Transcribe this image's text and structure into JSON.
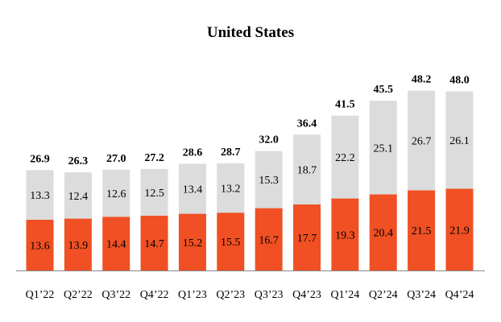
{
  "chart_data": {
    "type": "bar",
    "stacked": true,
    "title": "United States",
    "xlabel": "",
    "ylabel": "",
    "ylim": [
      0,
      52
    ],
    "grid": false,
    "legend": "none",
    "categories": [
      "Q1’22",
      "Q2’22",
      "Q3’22",
      "Q4’22",
      "Q1’23",
      "Q2’23",
      "Q3’23",
      "Q4’23",
      "Q1’24",
      "Q2’24",
      "Q3’24",
      "Q4’24"
    ],
    "series": [
      {
        "values": [
          13.6,
          13.9,
          14.4,
          14.7,
          15.2,
          15.5,
          16.7,
          17.7,
          19.3,
          20.4,
          21.5,
          21.9
        ],
        "color": "#F05023"
      },
      {
        "values": [
          13.3,
          12.4,
          12.6,
          12.5,
          13.4,
          13.2,
          15.3,
          18.7,
          22.2,
          25.1,
          26.7,
          26.1
        ],
        "color": "#DCDCDC"
      }
    ],
    "totals": [
      26.9,
      26.3,
      27.0,
      27.2,
      28.6,
      28.7,
      32.0,
      36.4,
      41.5,
      45.5,
      48.2,
      48.0
    ],
    "axis_color": "#888888"
  }
}
